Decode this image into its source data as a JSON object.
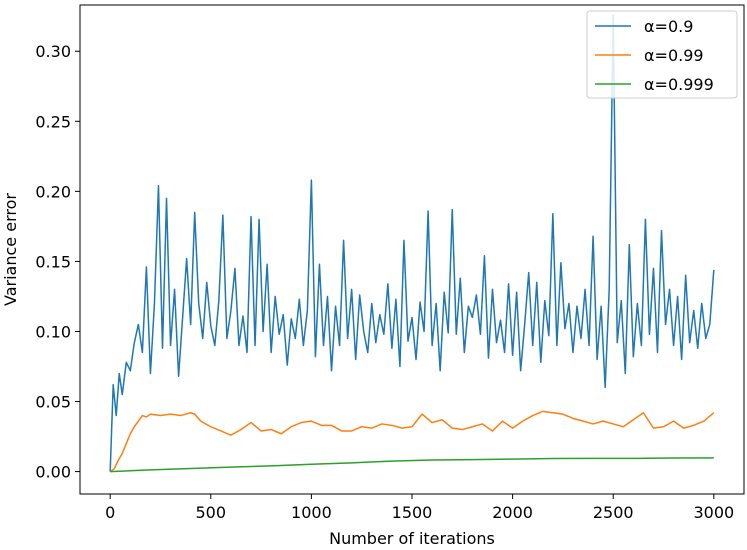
{
  "chart_data": {
    "type": "line",
    "title": "",
    "xlabel": "Number of iterations",
    "ylabel": "Variance error",
    "xlim": [
      -150,
      3150
    ],
    "ylim": [
      -0.016,
      0.333
    ],
    "xticks": [
      0,
      500,
      1000,
      1500,
      2000,
      2500,
      3000
    ],
    "xtick_labels": [
      "0",
      "500",
      "1000",
      "1500",
      "2000",
      "2500",
      "3000"
    ],
    "yticks": [
      0.0,
      0.05,
      0.1,
      0.15,
      0.2,
      0.25,
      0.3
    ],
    "ytick_labels": [
      "0.00",
      "0.05",
      "0.10",
      "0.15",
      "0.20",
      "0.25",
      "0.30"
    ],
    "grid": false,
    "legend_position": "top-right",
    "series": [
      {
        "name": "α=0.9",
        "color": "#1f77b4",
        "x": [
          0,
          15,
          30,
          45,
          60,
          80,
          100,
          120,
          140,
          160,
          180,
          200,
          220,
          240,
          260,
          280,
          300,
          320,
          340,
          360,
          380,
          400,
          420,
          440,
          460,
          480,
          500,
          520,
          540,
          560,
          580,
          600,
          620,
          640,
          660,
          680,
          700,
          720,
          740,
          760,
          780,
          800,
          820,
          840,
          860,
          880,
          900,
          920,
          940,
          960,
          980,
          1000,
          1020,
          1040,
          1060,
          1080,
          1100,
          1120,
          1140,
          1160,
          1180,
          1200,
          1220,
          1240,
          1260,
          1280,
          1300,
          1320,
          1340,
          1360,
          1380,
          1400,
          1420,
          1440,
          1460,
          1480,
          1500,
          1520,
          1540,
          1560,
          1580,
          1600,
          1620,
          1640,
          1660,
          1680,
          1700,
          1720,
          1740,
          1760,
          1780,
          1800,
          1820,
          1840,
          1860,
          1880,
          1900,
          1920,
          1940,
          1960,
          1980,
          2000,
          2020,
          2040,
          2060,
          2080,
          2100,
          2120,
          2140,
          2160,
          2180,
          2200,
          2220,
          2240,
          2260,
          2280,
          2300,
          2320,
          2340,
          2360,
          2380,
          2400,
          2420,
          2440,
          2460,
          2480,
          2500,
          2520,
          2540,
          2560,
          2580,
          2600,
          2620,
          2640,
          2660,
          2680,
          2700,
          2720,
          2740,
          2760,
          2780,
          2800,
          2820,
          2840,
          2860,
          2880,
          2900,
          2920,
          2940,
          2960,
          2980,
          3000
        ],
        "y": [
          0.0,
          0.062,
          0.04,
          0.07,
          0.055,
          0.078,
          0.072,
          0.092,
          0.105,
          0.085,
          0.146,
          0.07,
          0.12,
          0.204,
          0.088,
          0.195,
          0.09,
          0.13,
          0.068,
          0.11,
          0.152,
          0.105,
          0.185,
          0.12,
          0.095,
          0.135,
          0.104,
          0.09,
          0.122,
          0.183,
          0.095,
          0.115,
          0.145,
          0.09,
          0.111,
          0.085,
          0.182,
          0.09,
          0.18,
          0.1,
          0.148,
          0.085,
          0.125,
          0.098,
          0.112,
          0.076,
          0.109,
          0.095,
          0.123,
          0.09,
          0.115,
          0.208,
          0.082,
          0.148,
          0.09,
          0.125,
          0.072,
          0.118,
          0.09,
          0.165,
          0.095,
          0.13,
          0.08,
          0.126,
          0.1,
          0.085,
          0.12,
          0.092,
          0.112,
          0.098,
          0.134,
          0.088,
          0.123,
          0.075,
          0.165,
          0.093,
          0.11,
          0.08,
          0.121,
          0.1,
          0.186,
          0.09,
          0.12,
          0.072,
          0.128,
          0.099,
          0.187,
          0.098,
          0.138,
          0.085,
          0.118,
          0.11,
          0.126,
          0.098,
          0.154,
          0.081,
          0.13,
          0.092,
          0.108,
          0.085,
          0.134,
          0.083,
          0.128,
          0.072,
          0.105,
          0.142,
          0.09,
          0.135,
          0.078,
          0.122,
          0.097,
          0.184,
          0.09,
          0.149,
          0.102,
          0.12,
          0.085,
          0.118,
          0.095,
          0.13,
          0.09,
          0.168,
          0.08,
          0.118,
          0.06,
          0.13,
          0.326,
          0.092,
          0.122,
          0.07,
          0.162,
          0.082,
          0.12,
          0.09,
          0.18,
          0.098,
          0.145,
          0.085,
          0.172,
          0.105,
          0.13,
          0.09,
          0.125,
          0.08,
          0.14,
          0.092,
          0.115,
          0.088,
          0.12,
          0.095,
          0.105,
          0.144
        ]
      },
      {
        "name": "α=0.99",
        "color": "#ff7f0e",
        "x": [
          0,
          20,
          40,
          60,
          80,
          100,
          120,
          140,
          160,
          180,
          200,
          250,
          300,
          350,
          400,
          420,
          450,
          500,
          550,
          600,
          650,
          700,
          750,
          800,
          850,
          900,
          950,
          1000,
          1050,
          1100,
          1150,
          1200,
          1250,
          1300,
          1350,
          1400,
          1450,
          1500,
          1550,
          1600,
          1650,
          1700,
          1750,
          1800,
          1850,
          1900,
          1950,
          2000,
          2050,
          2100,
          2150,
          2200,
          2250,
          2300,
          2350,
          2400,
          2450,
          2500,
          2550,
          2600,
          2650,
          2700,
          2750,
          2800,
          2850,
          2900,
          2950,
          3000
        ],
        "y": [
          0.0,
          0.002,
          0.008,
          0.013,
          0.02,
          0.027,
          0.032,
          0.036,
          0.04,
          0.039,
          0.041,
          0.04,
          0.041,
          0.04,
          0.042,
          0.041,
          0.036,
          0.032,
          0.029,
          0.026,
          0.03,
          0.035,
          0.029,
          0.03,
          0.027,
          0.032,
          0.035,
          0.036,
          0.033,
          0.033,
          0.029,
          0.029,
          0.032,
          0.031,
          0.034,
          0.033,
          0.031,
          0.032,
          0.041,
          0.035,
          0.037,
          0.031,
          0.03,
          0.032,
          0.034,
          0.029,
          0.036,
          0.031,
          0.036,
          0.04,
          0.043,
          0.042,
          0.041,
          0.038,
          0.036,
          0.034,
          0.036,
          0.034,
          0.032,
          0.037,
          0.042,
          0.031,
          0.032,
          0.036,
          0.031,
          0.033,
          0.036,
          0.042
        ]
      },
      {
        "name": "α=0.999",
        "color": "#2ca02c",
        "x": [
          0,
          200,
          400,
          600,
          800,
          1000,
          1200,
          1400,
          1600,
          1800,
          2000,
          2200,
          2400,
          2600,
          2800,
          3000
        ],
        "y": [
          0.0,
          0.0012,
          0.0022,
          0.0032,
          0.0041,
          0.0052,
          0.0062,
          0.0075,
          0.0083,
          0.0085,
          0.0089,
          0.0093,
          0.0094,
          0.0094,
          0.0097,
          0.0098
        ]
      }
    ]
  }
}
